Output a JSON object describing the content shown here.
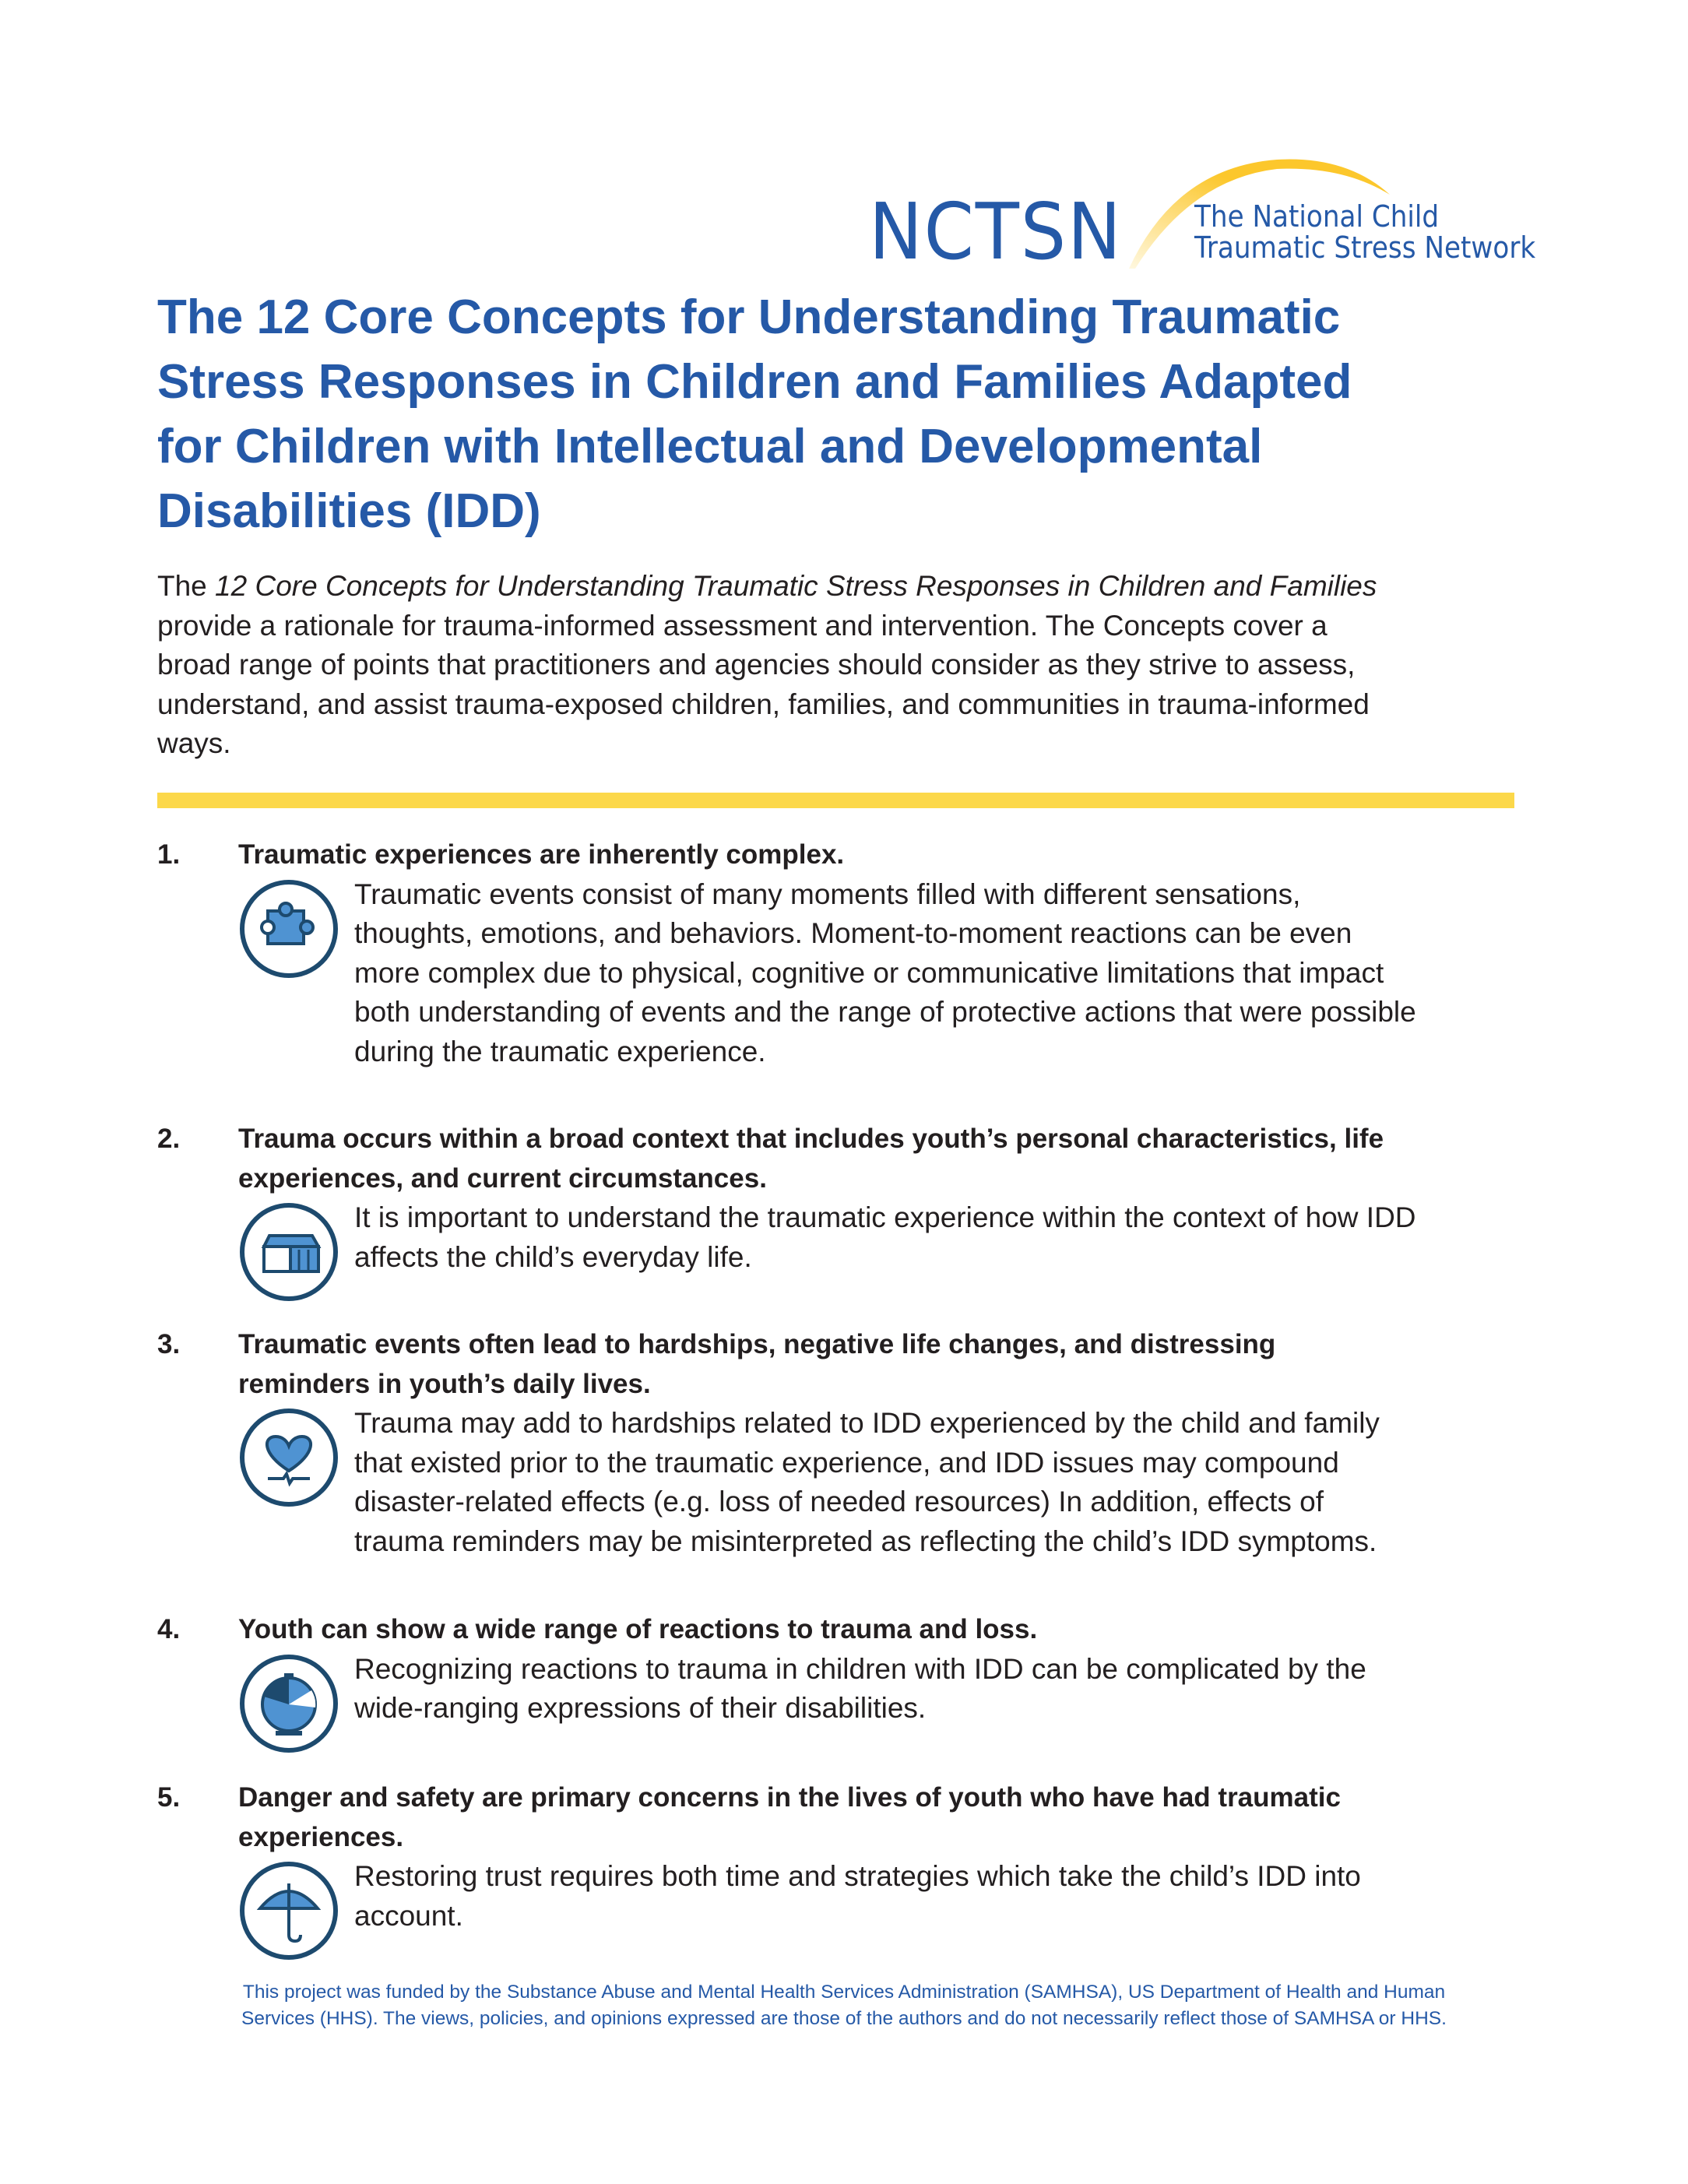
{
  "logo": {
    "mark": "NCTSN",
    "tagline": [
      "The National Child",
      "Traumatic Stress Network"
    ],
    "colors": {
      "blue": "#2559a7",
      "arc": "#fcc72c"
    }
  },
  "title_lines": [
    "The 12 Core Concepts for Understanding Traumatic",
    "Stress Responses in Children and Families Adapted",
    "for Children with Intellectual and Developmental",
    "Disabilities (IDD)"
  ],
  "intro": {
    "lead": "The ",
    "italic": "12 Core Concepts for Understanding Traumatic Stress Responses in Children and Families",
    "lines": [
      "provide a rationale for trauma-informed assessment and intervention. The Concepts cover a",
      "broad range of points that practitioners and agencies should consider as they strive to assess,",
      "understand, and assist trauma-exposed children, families, and communities in trauma-informed",
      "ways."
    ]
  },
  "colors": {
    "title": "#2559a7",
    "rule": "#fcd84a",
    "icon_stroke": "#1d4a6e",
    "icon_fill": "#4f93d2"
  },
  "items": [
    {
      "number": "1.",
      "icon": "puzzle-piece-icon",
      "heading": [
        "Traumatic experiences are inherently complex."
      ],
      "body": [
        "Traumatic events consist of many moments filled with different sensations,",
        "thoughts, emotions, and behaviors. Moment-to-moment reactions can be even",
        "more complex due to physical, cognitive or communicative limitations that impact",
        "both understanding of events and the range of protective actions that were possible",
        "during the traumatic experience."
      ]
    },
    {
      "number": "2.",
      "icon": "open-box-icon",
      "heading": [
        "Trauma occurs within a broad context that includes youth’s personal characteristics, life",
        "experiences, and current circumstances."
      ],
      "body": [
        "It is important to understand the traumatic experience within the context of how IDD",
        "affects the child’s everyday life."
      ]
    },
    {
      "number": "3.",
      "icon": "heart-pulse-icon",
      "heading": [
        "Traumatic events often lead to hardships, negative  life changes, and distressing",
        "reminders in youth’s daily lives."
      ],
      "body": [
        "Trauma may add to hardships related to IDD experienced by the child and family",
        "that existed prior to the traumatic experience, and IDD issues may compound",
        "disaster-related effects (e.g. loss of needed resources)  In addition, effects of",
        "trauma reminders may be misinterpreted as reflecting the child’s IDD symptoms."
      ]
    },
    {
      "number": "4.",
      "icon": "stopwatch-icon",
      "heading": [
        "Youth can show a wide range of reactions to trauma and loss."
      ],
      "body": [
        "Recognizing reactions to trauma in children with IDD can be complicated by the",
        "wide-ranging expressions of their disabilities."
      ]
    },
    {
      "number": "5.",
      "icon": "umbrella-icon",
      "heading": [
        "Danger and safety are primary concerns in the lives of youth who have had traumatic",
        "experiences."
      ],
      "body": [
        "Restoring trust requires both time and strategies which take the child’s IDD into",
        "account."
      ]
    }
  ],
  "footer": [
    "This project was funded by the Substance Abuse and Mental Health Services Administration (SAMHSA), US Department of Health and Human",
    "Services (HHS). The views, policies, and opinions expressed are those of the authors and do not necessarily reflect those of SAMHSA or HHS."
  ]
}
